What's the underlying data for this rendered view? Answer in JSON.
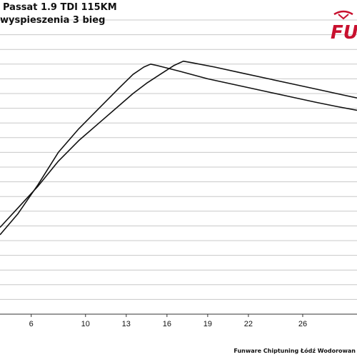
{
  "chart_data": {
    "type": "line",
    "title": "Passat 1.9 TDI 115KM",
    "subtitle": "wyspieszenia 3 bieg",
    "xlabel": "",
    "ylabel": "",
    "xlim": [
      3.7,
      30.0
    ],
    "ylim": [
      0,
      100
    ],
    "x_ticks": [
      6,
      10,
      13,
      16,
      19,
      22,
      26
    ],
    "y_gridlines": 20,
    "grid": true,
    "legend": "none",
    "series": [
      {
        "points": [
          [
            3.7,
            27
          ],
          [
            5,
            34
          ],
          [
            6.5,
            44
          ],
          [
            8,
            55
          ],
          [
            9.5,
            63
          ],
          [
            11,
            70
          ],
          [
            12.5,
            77
          ],
          [
            13.5,
            81.5
          ],
          [
            14.3,
            84
          ],
          [
            14.8,
            85
          ],
          [
            15.3,
            84.5
          ],
          [
            17,
            82.5
          ],
          [
            19,
            80
          ],
          [
            21,
            78
          ],
          [
            23,
            76
          ],
          [
            25,
            74
          ],
          [
            27,
            72
          ],
          [
            28.5,
            70.6
          ],
          [
            30,
            69.3
          ]
        ]
      },
      {
        "points": [
          [
            3.7,
            29.5
          ],
          [
            5,
            36
          ],
          [
            6.5,
            43.5
          ],
          [
            8,
            52
          ],
          [
            9.5,
            59
          ],
          [
            11,
            65
          ],
          [
            12.5,
            71
          ],
          [
            13.5,
            75
          ],
          [
            14.5,
            78.5
          ],
          [
            15.5,
            81.5
          ],
          [
            16.5,
            84.5
          ],
          [
            17.2,
            86
          ],
          [
            17.8,
            85.5
          ],
          [
            19.5,
            84
          ],
          [
            21.5,
            82
          ],
          [
            23.5,
            80
          ],
          [
            25.5,
            78
          ],
          [
            27.5,
            76
          ],
          [
            29,
            74.5
          ],
          [
            30,
            73.5
          ]
        ]
      }
    ],
    "line_color": "#111111",
    "grid_color": "#c8c8c8"
  },
  "footer": {
    "text": "Funware Chiptuning Łódź Wodorowan"
  },
  "logo": {
    "text": "FU",
    "accent": "#c8102e"
  }
}
